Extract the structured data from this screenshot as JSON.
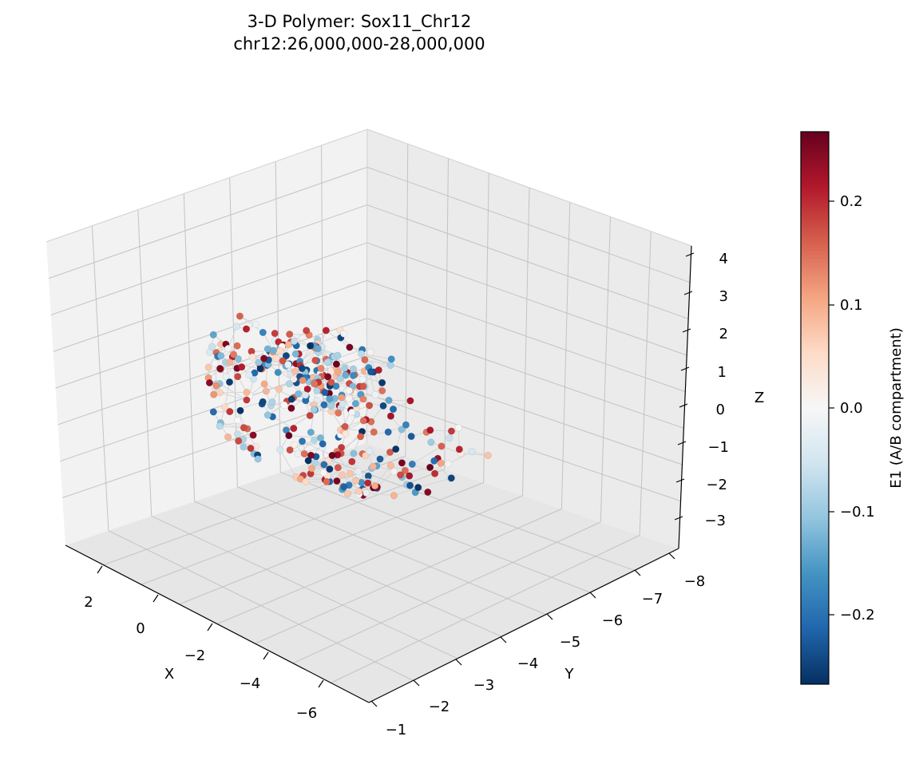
{
  "title": {
    "line1": "3-D Polymer: Sox11_Chr12",
    "line2": "chr12:26,000,000-28,000,000"
  },
  "chart_data": {
    "type": "scatter",
    "subtype": "3d-polymer-scatter",
    "title": "3-D Polymer: Sox11_Chr12\nchr12:26,000,000-28,000,000",
    "xlabel": "X",
    "ylabel": "Y",
    "zlabel": "Z",
    "xlim": [
      -7,
      3.5
    ],
    "ylim": [
      -8.3,
      -0.8
    ],
    "zlim": [
      -3.8,
      4.3
    ],
    "x_ticks": [
      "2",
      "0",
      "−2",
      "−4",
      "−6"
    ],
    "y_ticks": [
      "−8",
      "−7",
      "−6",
      "−5",
      "−4",
      "−3",
      "−2",
      "−1"
    ],
    "z_ticks": [
      "4",
      "3",
      "2",
      "1",
      "0",
      "−1",
      "−2",
      "−3"
    ],
    "grid": true,
    "connect_points": true,
    "colormap": "RdBu_r",
    "colorbar": {
      "label": "E1 (A/B compartment)",
      "range": [
        -0.27,
        0.27
      ],
      "ticks": [
        "0.2",
        "0.1",
        "0.0",
        "−0.1",
        "−0.2"
      ]
    },
    "approx_point_count": 400
  },
  "colors": {
    "pane_left": "#f2f2f2",
    "pane_right": "#ebebeb",
    "pane_floor": "#e6e6e6",
    "grid": "#c3c3c3",
    "link": "#d6d6d6"
  }
}
